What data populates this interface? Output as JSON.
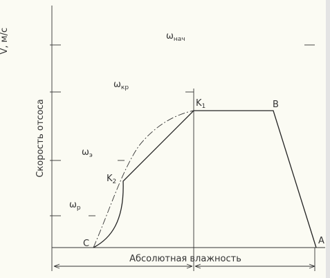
{
  "axes": {
    "y_label": "Скорость отсоса",
    "y_unit": "V, м/с",
    "x_label": "Абсолютная влажность"
  },
  "zones": [
    {
      "symbol": "ω",
      "sub": "нач"
    },
    {
      "symbol": "ω",
      "sub": "кр"
    },
    {
      "symbol": "ω",
      "sub": "э"
    },
    {
      "symbol": "ω",
      "sub": "р"
    }
  ],
  "points": [
    {
      "label": "C"
    },
    {
      "label": "K",
      "sub": "2"
    },
    {
      "label": "K",
      "sub": "1"
    },
    {
      "label": "B"
    },
    {
      "label": "A"
    }
  ]
}
